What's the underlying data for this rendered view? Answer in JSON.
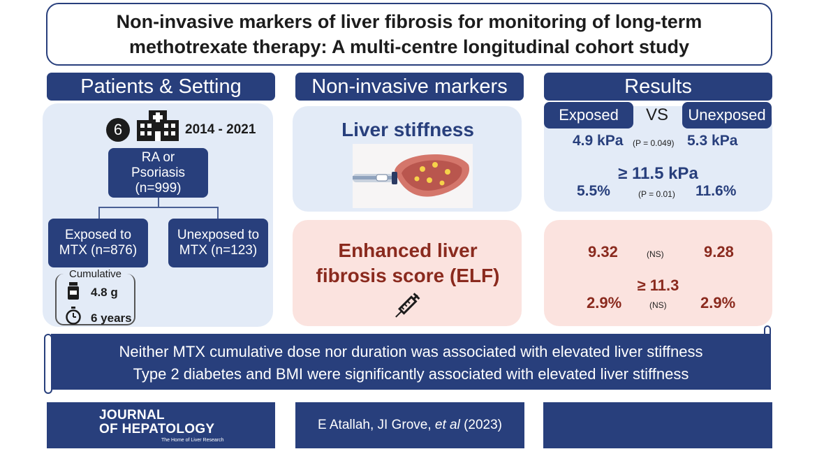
{
  "title": {
    "line1": "Non-invasive markers of liver fibrosis for monitoring of long-term",
    "line2": "methotrexate therapy: A multi-centre longitudinal cohort study"
  },
  "columns": {
    "patients": "Patients & Setting",
    "markers": "Non-invasive markers",
    "results": "Results"
  },
  "patients": {
    "centres": "6",
    "years": "2014 - 2021",
    "root_line1": "RA or",
    "root_line2": "Psoriasis",
    "root_line3": "(n=999)",
    "exposed_line1": "Exposed to",
    "exposed_line2": "MTX (n=876)",
    "unexposed_line1": "Unexposed to",
    "unexposed_line2": "MTX (n=123)",
    "cumulative_label": "Cumulative",
    "dose": "4.8 g",
    "duration": "6 years"
  },
  "markers": {
    "stiffness": "Liver stiffness",
    "elf_line1": "Enhanced liver",
    "elf_line2": "fibrosis score (ELF)"
  },
  "results": {
    "exposed_tab": "Exposed",
    "vs": "VS",
    "unexposed_tab": "Unexposed",
    "stiff_exposed": "4.9 kPa",
    "stiff_p": "(P = 0.049)",
    "stiff_unexposed": "5.3 kPa",
    "stiff_threshold": "≥ 11.5 kPa",
    "stiff_pct_exposed": "5.5%",
    "stiff_pct_p": "(P = 0.01)",
    "stiff_pct_unexposed": "11.6%",
    "elf_exposed": "9.32",
    "elf_ns": "(NS)",
    "elf_unexposed": "9.28",
    "elf_threshold": "≥ 11.3",
    "elf_pct_exposed": "2.9%",
    "elf_pct_ns": "(NS)",
    "elf_pct_unexposed": "2.9%"
  },
  "conclusion": {
    "line1": "Neither MTX cumulative dose nor duration was associated with elevated liver stiffness",
    "line2": "Type 2 diabetes and BMI were significantly associated with elevated liver stiffness"
  },
  "footer": {
    "journal_line1": "JOURNAL",
    "journal_line2": "OF HEPATOLOGY",
    "journal_tagline": "The Home of Liver Research",
    "authors_main": "E Atallah, JI Grove, ",
    "authors_etal": "et al",
    "authors_year": " (2023)"
  },
  "colors": {
    "navy": "#283f7c",
    "panel_blue": "#e3ebf7",
    "panel_pink": "#fbe3df",
    "dark_red": "#8a2a1e"
  }
}
